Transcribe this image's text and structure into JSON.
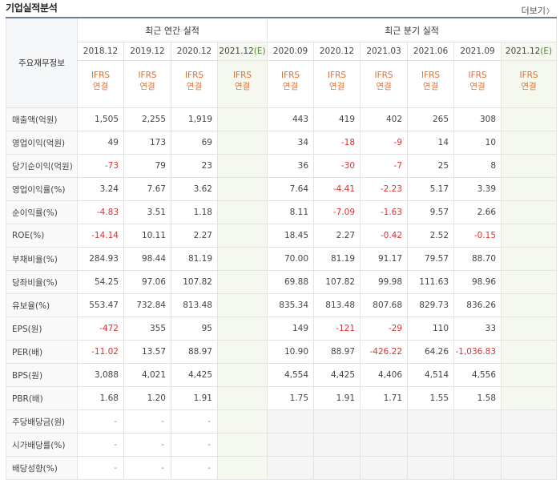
{
  "title": "기업실적분석",
  "more_label": "더보기",
  "header": {
    "main_label": "주요재무정보",
    "annual_group": "최근 연간 실적",
    "quarter_group": "최근 분기 실적",
    "estimate_mark": "(E)",
    "annual_periods": [
      "2018.12",
      "2019.12",
      "2020.12",
      "2021.12"
    ],
    "quarter_periods": [
      "2020.09",
      "2020.12",
      "2021.03",
      "2021.06",
      "2021.09",
      "2021.12"
    ],
    "standard_line1": "IFRS",
    "standard_line2": "연결"
  },
  "rows": [
    {
      "label": "매출액(억원)",
      "values": [
        "1,505",
        "2,255",
        "1,919",
        "",
        "443",
        "419",
        "402",
        "265",
        "308",
        ""
      ],
      "group_start": true
    },
    {
      "label": "영업이익(억원)",
      "values": [
        "49",
        "173",
        "69",
        "",
        "34",
        "-18",
        "-9",
        "14",
        "10",
        ""
      ]
    },
    {
      "label": "당기순이익(억원)",
      "values": [
        "-73",
        "79",
        "23",
        "",
        "36",
        "-30",
        "-7",
        "25",
        "8",
        ""
      ]
    },
    {
      "label": "영업이익률(%)",
      "values": [
        "3.24",
        "7.67",
        "3.62",
        "",
        "7.64",
        "-4.41",
        "-2.23",
        "5.17",
        "3.39",
        ""
      ],
      "group_start": true
    },
    {
      "label": "순이익률(%)",
      "values": [
        "-4.83",
        "3.51",
        "1.18",
        "",
        "8.11",
        "-7.09",
        "-1.63",
        "9.57",
        "2.66",
        ""
      ]
    },
    {
      "label": "ROE(%)",
      "values": [
        "-14.14",
        "10.11",
        "2.27",
        "",
        "18.45",
        "2.27",
        "-0.42",
        "2.52",
        "-0.15",
        ""
      ]
    },
    {
      "label": "부채비율(%)",
      "values": [
        "284.93",
        "98.44",
        "81.19",
        "",
        "70.00",
        "81.19",
        "91.17",
        "79.57",
        "88.70",
        ""
      ],
      "group_start": true
    },
    {
      "label": "당좌비율(%)",
      "values": [
        "54.25",
        "97.06",
        "107.82",
        "",
        "69.88",
        "107.82",
        "99.98",
        "111.63",
        "98.96",
        ""
      ]
    },
    {
      "label": "유보율(%)",
      "values": [
        "553.47",
        "732.84",
        "813.48",
        "",
        "835.34",
        "813.48",
        "807.68",
        "829.73",
        "836.26",
        ""
      ]
    },
    {
      "label": "EPS(원)",
      "values": [
        "-472",
        "355",
        "95",
        "",
        "149",
        "-121",
        "-29",
        "110",
        "33",
        ""
      ],
      "group_start": true
    },
    {
      "label": "PER(배)",
      "values": [
        "-11.02",
        "13.57",
        "88.97",
        "",
        "10.90",
        "88.97",
        "-426.22",
        "64.26",
        "-1,036.83",
        ""
      ]
    },
    {
      "label": "BPS(원)",
      "values": [
        "3,088",
        "4,021",
        "4,425",
        "",
        "4,554",
        "4,425",
        "4,406",
        "4,514",
        "4,556",
        ""
      ]
    },
    {
      "label": "PBR(배)",
      "values": [
        "1.68",
        "1.20",
        "1.91",
        "",
        "1.75",
        "1.91",
        "1.71",
        "1.55",
        "1.58",
        ""
      ]
    },
    {
      "label": "주당배당금(원)",
      "values": [
        "-",
        "-",
        "-",
        "",
        null,
        null,
        null,
        null,
        null,
        null
      ],
      "group_start": true
    },
    {
      "label": "시가배당률(%)",
      "values": [
        "-",
        "-",
        "-",
        "",
        null,
        null,
        null,
        null,
        null,
        null
      ]
    },
    {
      "label": "배당성향(%)",
      "values": [
        "-",
        "-",
        "-",
        "",
        null,
        null,
        null,
        null,
        null,
        null
      ]
    }
  ]
}
